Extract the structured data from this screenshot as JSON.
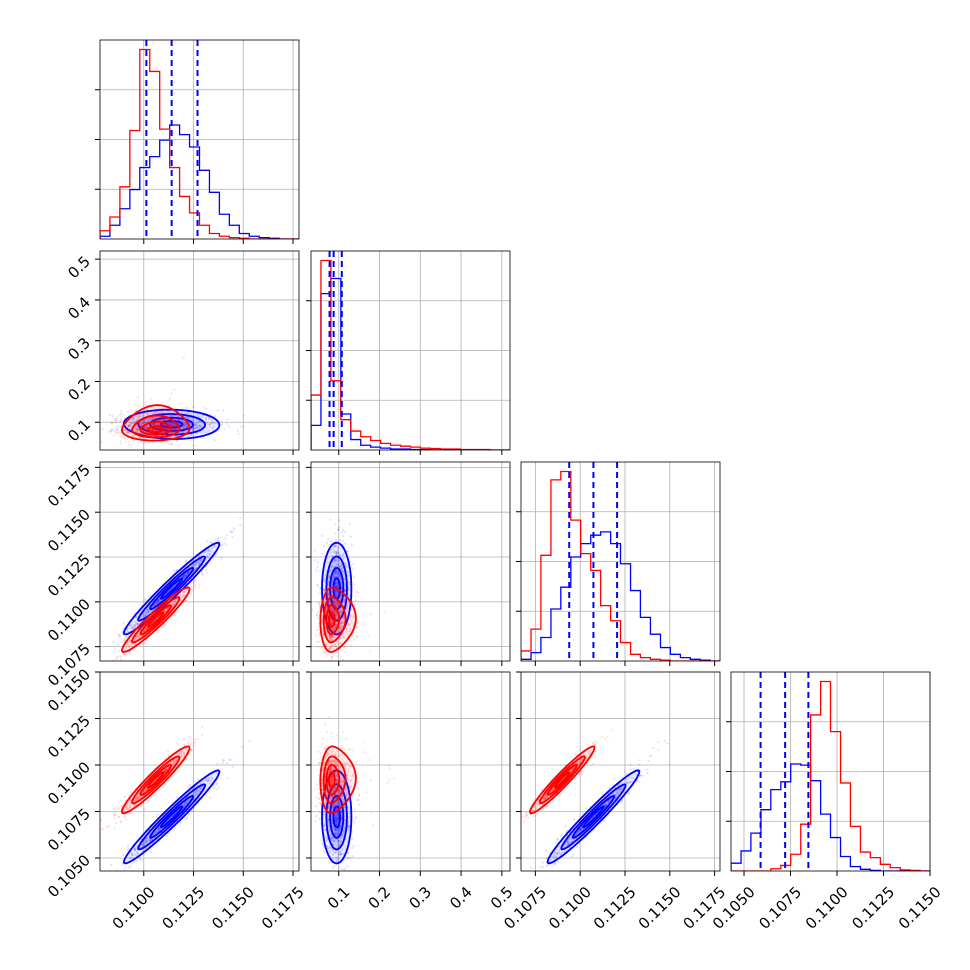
{
  "chart_data": {
    "type": "corner",
    "title": "",
    "grid": true,
    "colors": {
      "series_a": "#0000ff",
      "series_b": "#ff0000"
    },
    "params": [
      {
        "ticks": [
          "0.1100",
          "0.1125",
          "0.1150",
          "0.1175"
        ],
        "range": [
          0.1078,
          0.1178
        ]
      },
      {
        "ticks": [
          "0.1",
          "0.2",
          "0.3",
          "0.4",
          "0.5"
        ],
        "range": [
          0.032,
          0.52
        ]
      },
      {
        "ticks": [
          "0.1075",
          "0.1100",
          "0.1125",
          "0.1150",
          "0.1175"
        ],
        "range": [
          0.1067,
          0.1178
        ]
      },
      {
        "ticks": [
          "0.1050",
          "0.1075",
          "0.1100",
          "0.1125",
          "0.1150"
        ],
        "range": [
          0.1043,
          0.115
        ]
      }
    ],
    "quantiles_series_a": [
      [
        0.11013,
        0.1114,
        0.1127
      ],
      [
        0.0775,
        0.0875,
        0.1075
      ],
      [
        0.10939,
        0.11074,
        0.11206
      ],
      [
        0.10589,
        0.10721,
        0.10846
      ]
    ],
    "histograms": [
      {
        "edges": [
          0.1078,
          0.1083,
          0.1088,
          0.1093,
          0.1098,
          0.1103,
          0.1108,
          0.1113,
          0.1118,
          0.1123,
          0.1128,
          0.1133,
          0.1138,
          0.1143,
          0.1148,
          0.1153,
          0.1158,
          0.1163,
          0.1168,
          0.1173,
          0.1178
        ],
        "series": [
          {
            "name": "",
            "color": "#0000ff",
            "values": [
              2,
              10,
              22,
              36,
              52,
              60,
              72,
              83,
              76,
              67,
              50,
              34,
              18,
              10,
              4,
              2,
              1,
              0.5,
              0,
              0
            ]
          },
          {
            "name": "",
            "color": "#ff0000",
            "values": [
              6,
              16,
              38,
              79,
              138,
              122,
              80,
              52,
              31,
              19,
              10,
              4,
              2,
              1,
              0.5,
              0,
              0,
              0,
              0,
              0
            ]
          }
        ]
      },
      {
        "edges": [
          0.032,
          0.0564,
          0.0808,
          0.1052,
          0.1296,
          0.154,
          0.1784,
          0.2028,
          0.2272,
          0.2516,
          0.276,
          0.3004,
          0.3248,
          0.3492,
          0.3736,
          0.398,
          0.4224,
          0.4468,
          0.4712,
          0.4956,
          0.52
        ],
        "series": [
          {
            "name": "",
            "color": "#0000ff",
            "values": [
              26,
              165,
              181,
              38,
              11,
              5,
              3,
              2,
              1,
              1,
              0.5,
              0.5,
              0,
              0,
              0,
              0,
              0,
              0,
              0,
              0
            ]
          },
          {
            "name": "",
            "color": "#ff0000",
            "values": [
              58,
              200,
              73,
              32,
              20,
              14,
              10,
              7,
              5,
              4,
              3,
              2,
              1.5,
              1,
              1,
              0.5,
              0.5,
              0.5,
              0,
              0
            ]
          }
        ]
      },
      {
        "edges": [
          0.1067,
          0.10726,
          0.10781,
          0.10837,
          0.10892,
          0.10948,
          0.11003,
          0.11059,
          0.11114,
          0.1117,
          0.11225,
          0.11281,
          0.11336,
          0.11392,
          0.11448,
          0.11503,
          0.11559,
          0.11614,
          0.1167,
          0.11725,
          0.1178
        ],
        "series": [
          {
            "name": "",
            "color": "#0000ff",
            "values": [
              1,
              5,
              14,
              31,
              44,
              62,
              70,
              75,
              77,
              70,
              58,
              42,
              26,
              16,
              8,
              4,
              2,
              1,
              0.5,
              0
            ]
          },
          {
            "name": "",
            "color": "#ff0000",
            "values": [
              6,
              19,
              63,
              108,
              113,
              84,
              64,
              54,
              33,
              24,
              11,
              4,
              2,
              1,
              0.5,
              0,
              0,
              0,
              0,
              0
            ]
          }
        ]
      },
      {
        "edges": [
          0.1043,
          0.10484,
          0.10537,
          0.10591,
          0.10644,
          0.10698,
          0.10751,
          0.10805,
          0.10858,
          0.10912,
          0.10965,
          0.11019,
          0.11072,
          0.11126,
          0.11179,
          0.11233,
          0.11286,
          0.1134,
          0.11393,
          0.11447,
          0.115
        ],
        "series": [
          {
            "name": "",
            "color": "#0000ff",
            "values": [
              7,
              18,
              34,
              55,
              73,
              80,
              96,
              95,
              81,
              51,
              30,
              13,
              4,
              1.5,
              0.5,
              0,
              0,
              0,
              0,
              0
            ]
          },
          {
            "name": "",
            "color": "#ff0000",
            "values": [
              0,
              0,
              0,
              0,
              2,
              5,
              15,
              42,
              140,
              170,
              125,
              79,
              40,
              17,
              12,
              6,
              3,
              1,
              0.5,
              0
            ]
          }
        ]
      }
    ],
    "pairs": [
      {
        "row": 1,
        "col": 0,
        "series": [
          {
            "color": "#0000ff",
            "mean": [
              0.1114,
              0.095
            ],
            "std": [
              0.0012,
              0.018
            ],
            "rho": -0.05,
            "skew_y": false
          },
          {
            "color": "#ff0000",
            "mean": [
              0.1106,
              0.082
            ],
            "std": [
              0.00085,
              0.03
            ],
            "rho": 0.05,
            "skew_y": true
          }
        ]
      },
      {
        "row": 2,
        "col": 0,
        "series": [
          {
            "color": "#0000ff",
            "mean": [
              0.1114,
              0.11074
            ],
            "std": [
              0.0012,
              0.00128
            ],
            "rho": 0.97,
            "skew_y": false
          },
          {
            "color": "#ff0000",
            "mean": [
              0.1106,
              0.109
            ],
            "std": [
              0.00085,
              0.0009
            ],
            "rho": 0.95,
            "skew_y": false
          }
        ]
      },
      {
        "row": 2,
        "col": 1,
        "series": [
          {
            "color": "#0000ff",
            "mean": [
              0.095,
              0.11074
            ],
            "std": [
              0.018,
              0.00128
            ],
            "rho": 0.0,
            "skew_y": false
          },
          {
            "color": "#ff0000",
            "mean": [
              0.082,
              0.109
            ],
            "std": [
              0.03,
              0.0009
            ],
            "rho": 0.05,
            "skew_x": true
          }
        ]
      },
      {
        "row": 3,
        "col": 0,
        "series": [
          {
            "color": "#0000ff",
            "mean": [
              0.1114,
              0.10721
            ],
            "std": [
              0.0012,
              0.00125
            ],
            "rho": 0.97,
            "skew_y": false
          },
          {
            "color": "#ff0000",
            "mean": [
              0.1106,
              0.1092
            ],
            "std": [
              0.00085,
              0.0009
            ],
            "rho": 0.95,
            "skew_y": false
          }
        ]
      },
      {
        "row": 3,
        "col": 1,
        "series": [
          {
            "color": "#0000ff",
            "mean": [
              0.095,
              0.10721
            ],
            "std": [
              0.018,
              0.00125
            ],
            "rho": 0.0,
            "skew_y": false
          },
          {
            "color": "#ff0000",
            "mean": [
              0.082,
              0.1092
            ],
            "std": [
              0.03,
              0.0009
            ],
            "rho": 0.05,
            "skew_x": true
          }
        ]
      },
      {
        "row": 3,
        "col": 2,
        "series": [
          {
            "color": "#0000ff",
            "mean": [
              0.11074,
              0.10721
            ],
            "std": [
              0.00128,
              0.00125
            ],
            "rho": 0.97,
            "skew_y": false
          },
          {
            "color": "#ff0000",
            "mean": [
              0.109,
              0.1092
            ],
            "std": [
              0.0009,
              0.0009
            ],
            "rho": 0.96,
            "skew_y": false
          }
        ]
      }
    ]
  }
}
